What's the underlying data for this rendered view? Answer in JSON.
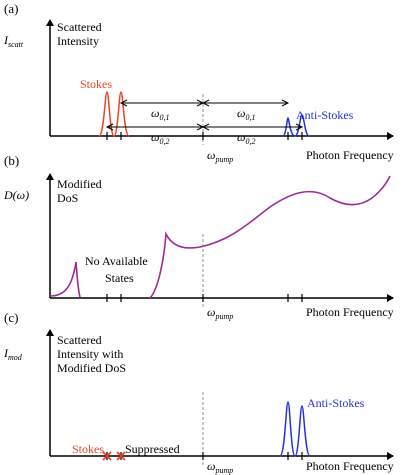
{
  "panels": [
    {
      "letter": "(a)",
      "ylabel": "I",
      "ylabel_sub": "scatt",
      "title_lines": [
        "Scattered",
        "Intensity"
      ],
      "xlabel": "Photon Frequency",
      "pump_label": "ω",
      "pump_sub": "pump",
      "stokes_label": "Stokes",
      "antistokes_label": "Anti-Stokes",
      "omega01": "ω",
      "omega01_sub": "0,1",
      "omega02": "ω",
      "omega02_sub": "0,2"
    },
    {
      "letter": "(b)",
      "ylabel": "D(ω)",
      "title_lines": [
        "Modified",
        "DoS"
      ],
      "gap_lines": [
        "No Available",
        "States"
      ],
      "xlabel": "Photon Frequency",
      "pump_label": "ω",
      "pump_sub": "pump"
    },
    {
      "letter": "(c)",
      "ylabel": "I",
      "ylabel_sub": "mod",
      "title_lines": [
        "Scattered",
        "Intensity with",
        "Modified DoS"
      ],
      "xlabel": "Photon Frequency",
      "pump_label": "ω",
      "pump_sub": "pump",
      "stokes_label": "Stokes",
      "suppressed_label": "Suppressed",
      "antistokes_label": "Anti-Stokes"
    }
  ],
  "colors": {
    "stokes": "#e8442a",
    "antistokes": "#2233dd",
    "dos": "#a0289a",
    "axis": "#000000",
    "pump_line": "#777777"
  }
}
